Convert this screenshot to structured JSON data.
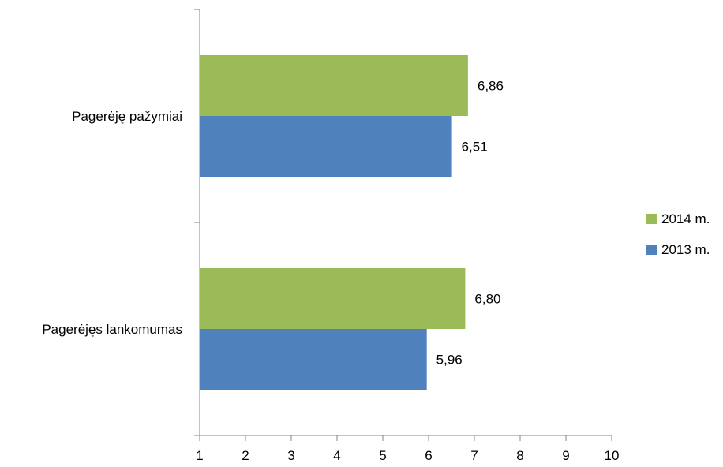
{
  "chart_data": {
    "type": "bar",
    "orientation": "horizontal",
    "categories": [
      "Pagerėję pažymiai",
      "Pagerėjęs lankomumas"
    ],
    "series": [
      {
        "name": "2014 m.",
        "values": [
          6.86,
          6.8
        ],
        "labels": [
          "6,86",
          "6,80"
        ],
        "color": "#9BBB59"
      },
      {
        "name": "2013 m.",
        "values": [
          6.51,
          5.96
        ],
        "labels": [
          "6,51",
          "5,96"
        ],
        "color": "#4F81BD"
      }
    ],
    "xlim": [
      1,
      10
    ],
    "x_ticks": [
      "1",
      "2",
      "3",
      "4",
      "5",
      "6",
      "7",
      "8",
      "9",
      "10"
    ],
    "title": "",
    "xlabel": "",
    "ylabel": "",
    "grid": false,
    "legend_position": "right"
  }
}
